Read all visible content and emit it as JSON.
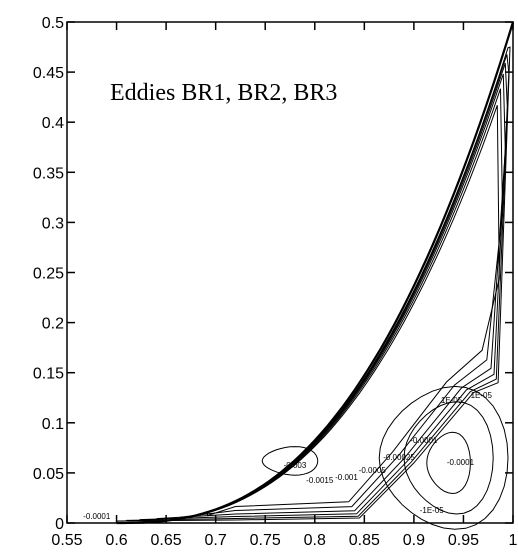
{
  "chart_data": {
    "type": "contour",
    "title": "Eddies BR1, BR2, BR3",
    "xlabel": "",
    "ylabel": "",
    "xlim": [
      0.55,
      1.0
    ],
    "ylim": [
      0,
      0.5
    ],
    "grid": false,
    "x_ticks": [
      "0.55",
      "0.6",
      "0.65",
      "0.7",
      "0.75",
      "0.8",
      "0.85",
      "0.9",
      "0.95",
      "1"
    ],
    "y_ticks": [
      "0",
      "0.05",
      "0.1",
      "0.15",
      "0.2",
      "0.25",
      "0.3",
      "0.35",
      "0.4",
      "0.45",
      "0.5"
    ],
    "contour_labels": [
      {
        "text": "-0.0001",
        "x": 0.58,
        "y": 0.004
      },
      {
        "text": "-0.003",
        "x": 0.78,
        "y": 0.055
      },
      {
        "text": "-0.0015",
        "x": 0.805,
        "y": 0.04
      },
      {
        "text": "-0.001",
        "x": 0.832,
        "y": 0.043
      },
      {
        "text": "-0.0005",
        "x": 0.858,
        "y": 0.05
      },
      {
        "text": "-0.00025",
        "x": 0.885,
        "y": 0.063
      },
      {
        "text": "-0.0001",
        "x": 0.91,
        "y": 0.08
      },
      {
        "text": "1E-05",
        "x": 0.938,
        "y": 0.12
      },
      {
        "text": "1E-05",
        "x": 0.968,
        "y": 0.125
      },
      {
        "text": "-0.0001",
        "x": 0.947,
        "y": 0.058
      },
      {
        "text": "-1E-05",
        "x": 0.918,
        "y": 0.01
      }
    ]
  }
}
